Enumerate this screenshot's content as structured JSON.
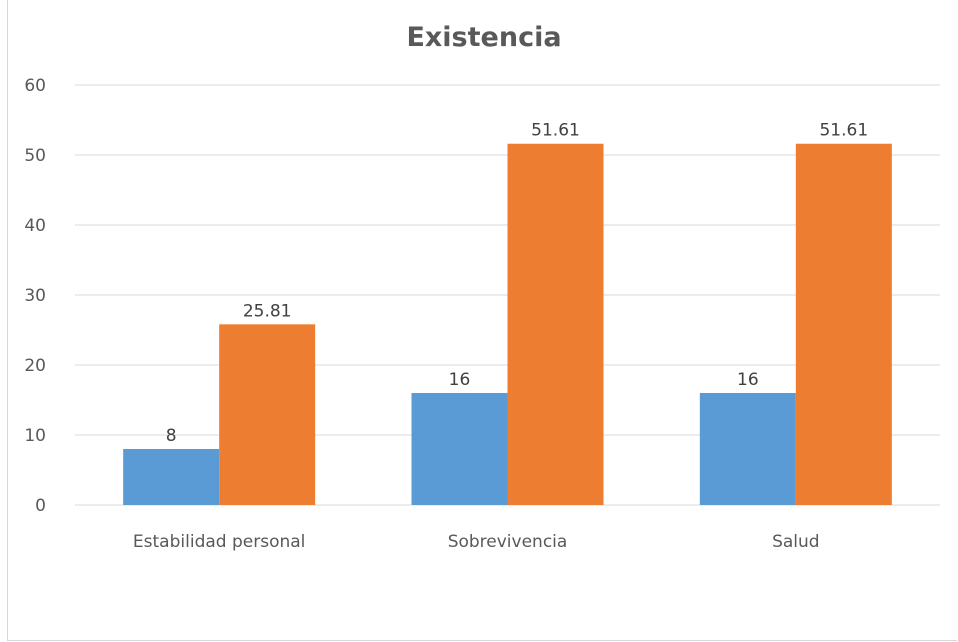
{
  "chart_data": {
    "type": "bar",
    "title": "Existencia",
    "xlabel": "",
    "ylabel": "",
    "categories": [
      "Estabilidad personal",
      "Sobrevivencia",
      "Salud"
    ],
    "series": [
      {
        "color": "#5b9bd5",
        "values": [
          8,
          16,
          16
        ],
        "labels": [
          "8",
          "16",
          "16"
        ]
      },
      {
        "color": "#ed7d31",
        "values": [
          25.81,
          51.61,
          51.61
        ],
        "labels": [
          "25.81",
          "51.61",
          "51.61"
        ]
      }
    ],
    "ylim": [
      0,
      60
    ],
    "yticks": [
      0,
      10,
      20,
      30,
      40,
      50,
      60
    ],
    "grid": true,
    "legend": "none"
  }
}
